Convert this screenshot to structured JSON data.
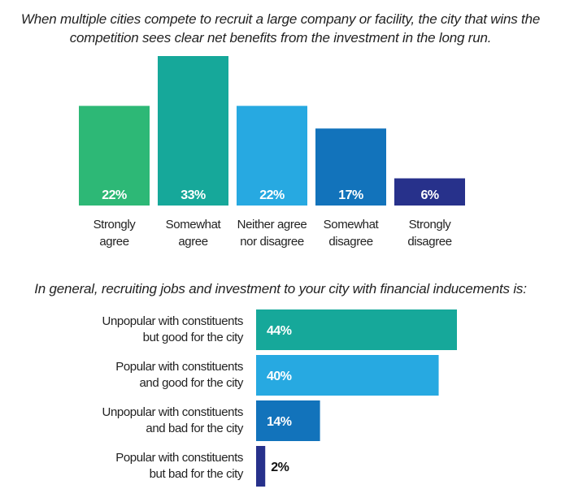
{
  "chart_data": [
    {
      "type": "bar",
      "title": "When multiple cities compete to recruit a large company or facility, the city that wins the competition sees clear net benefits from the investment in the long run.",
      "categories": [
        [
          "Strongly",
          "agree"
        ],
        [
          "Somewhat",
          "agree"
        ],
        [
          "Neither agree",
          "nor disagree"
        ],
        [
          "Somewhat",
          "disagree"
        ],
        [
          "Strongly",
          "disagree"
        ]
      ],
      "values": [
        22,
        33,
        22,
        17,
        6
      ],
      "value_labels": [
        "22%",
        "33%",
        "22%",
        "17%",
        "6%"
      ],
      "colors": [
        "#2DB876",
        "#16A89A",
        "#27A9E1",
        "#1273BB",
        "#27318B"
      ],
      "ylim": [
        0,
        33
      ]
    },
    {
      "type": "bar",
      "orientation": "horizontal",
      "title": "In general, recruiting jobs and investment to your city with financial inducements is:",
      "categories": [
        [
          "Unpopular with constituents",
          "but good for the city"
        ],
        [
          "Popular with constituents",
          "and good for the city"
        ],
        [
          "Unpopular with constituents",
          "and bad for the city"
        ],
        [
          "Popular with constituents",
          "but bad for the city"
        ]
      ],
      "values": [
        44,
        40,
        14,
        2
      ],
      "value_labels": [
        "44%",
        "40%",
        "14%",
        "2%"
      ],
      "colors": [
        "#16A89A",
        "#27A9E1",
        "#1273BB",
        "#27318B"
      ],
      "xlim": [
        0,
        44
      ]
    }
  ]
}
